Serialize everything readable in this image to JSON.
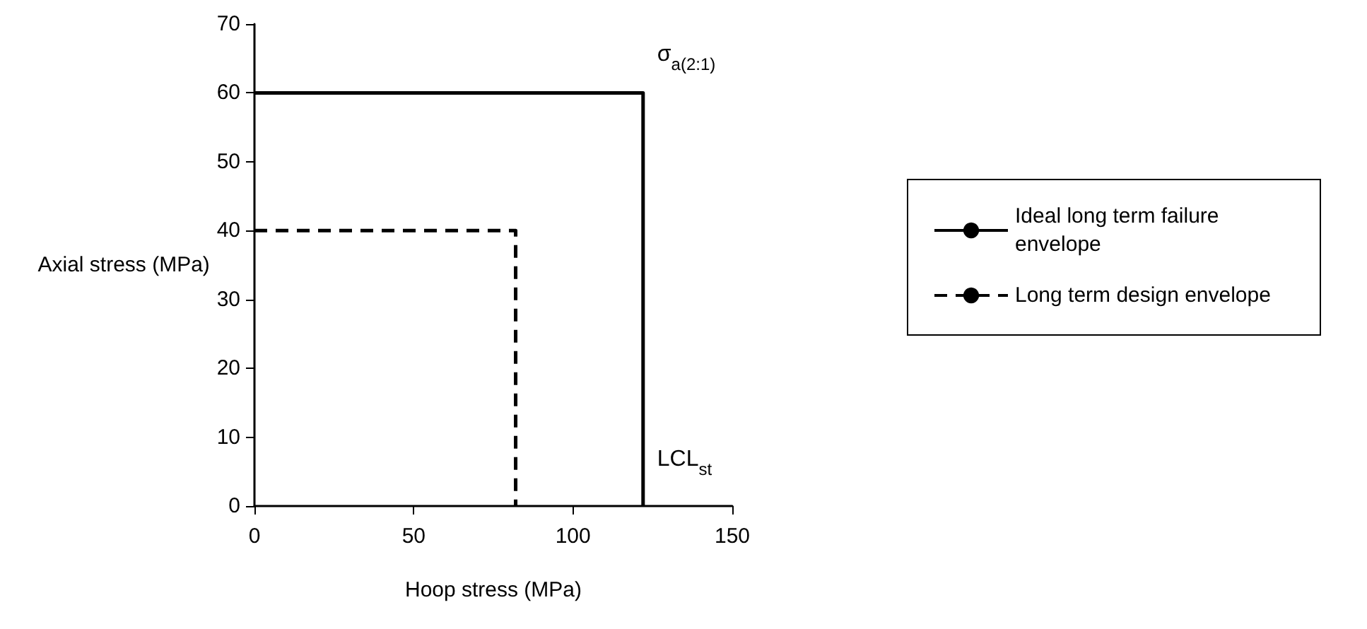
{
  "chart_data": {
    "type": "line",
    "xlabel": "Hoop stress (MPa)",
    "ylabel": "Axial stress (MPa)",
    "xlim": [
      0,
      150
    ],
    "xticks": [
      0,
      50,
      100,
      150
    ],
    "ylim": [
      0,
      70
    ],
    "yticks": [
      0,
      10,
      20,
      30,
      40,
      50,
      60,
      70
    ],
    "grid": false,
    "legend": "right",
    "marker": "none",
    "series": [
      {
        "name": "Ideal long term failure envelope",
        "color": "#000000",
        "line_style": "solid",
        "x": [
          0,
          122,
          122
        ],
        "values": [
          60,
          60,
          0
        ]
      },
      {
        "name": "Long term design envelope",
        "color": "#000000",
        "line_style": "dashed",
        "x": [
          0,
          82,
          82
        ],
        "values": [
          40,
          40,
          0
        ]
      }
    ],
    "annotations": [
      {
        "text": "σ$_{a(2:1)}$",
        "x": 122,
        "y": 60
      },
      {
        "text": "LCL$_{st}$",
        "x": 122,
        "y": 0
      }
    ]
  }
}
